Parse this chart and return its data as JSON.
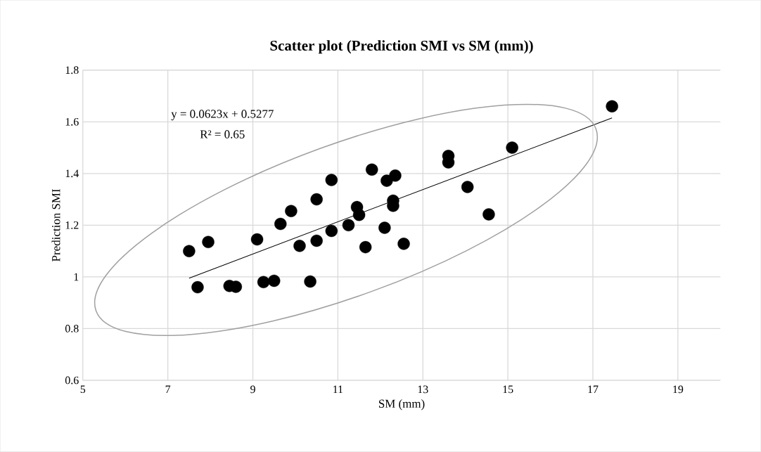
{
  "chart_data": {
    "type": "scatter",
    "title": "Scatter plot (Prediction SMI vs SM (mm))",
    "xlabel": "SM (mm)",
    "ylabel": "Prediction SMI",
    "annotations": [
      "y = 0.0623x + 0.5277",
      "R² = 0.65"
    ],
    "xlim": [
      5,
      20
    ],
    "xticks": [
      5,
      7,
      9,
      11,
      13,
      15,
      17,
      19
    ],
    "ylim": [
      0.6,
      1.8
    ],
    "yticks": [
      0.6,
      0.8,
      1,
      1.2,
      1.4,
      1.6,
      1.8
    ],
    "grid": true,
    "marker": "circle",
    "series": [
      {
        "color": "#000000",
        "x": [
          7.5,
          7.7,
          7.95,
          8.45,
          8.6,
          9.1,
          9.25,
          9.5,
          9.65,
          9.9,
          10.1,
          10.35,
          10.5,
          10.5,
          10.85,
          10.85,
          11.25,
          11.45,
          11.5,
          11.65,
          11.8,
          12.1,
          12.15,
          12.3,
          12.3,
          12.35,
          12.55,
          13.6,
          13.6,
          14.05,
          14.55,
          15.1,
          17.45
        ],
        "values": [
          1.1,
          0.96,
          1.135,
          0.965,
          0.962,
          1.145,
          0.98,
          0.985,
          1.205,
          1.255,
          1.12,
          0.982,
          1.14,
          1.3,
          1.375,
          1.178,
          1.2,
          1.27,
          1.24,
          1.115,
          1.415,
          1.19,
          1.372,
          1.295,
          1.275,
          1.392,
          1.128,
          1.468,
          1.443,
          1.348,
          1.242,
          1.5,
          1.66
        ]
      },
      {
        "type": "line",
        "color": "#000000",
        "marker": "none",
        "line_style": "solid",
        "x": [
          7.5,
          17.45
        ],
        "values": [
          0.995,
          1.615
        ]
      }
    ]
  }
}
